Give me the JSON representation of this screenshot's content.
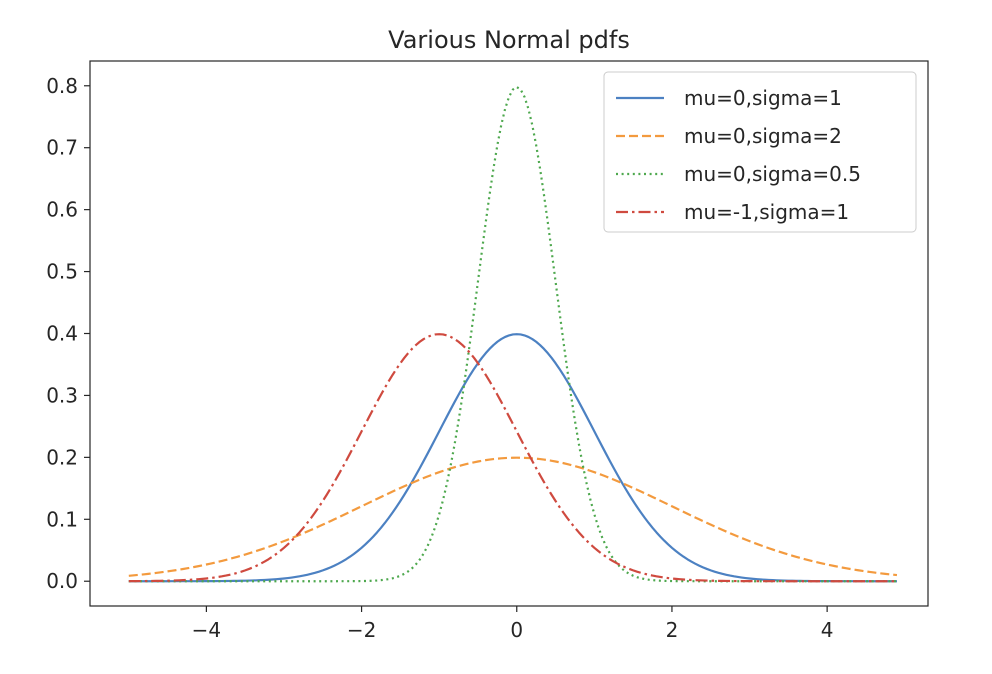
{
  "chart_data": {
    "type": "line",
    "title": "Various Normal pdfs",
    "xlabel": "",
    "ylabel": "",
    "xlim": [
      -5.5,
      5.3
    ],
    "ylim": [
      -0.04,
      0.84
    ],
    "grid": false,
    "legend_position": "top-right",
    "x_range": [
      -5,
      4.9
    ],
    "x_step": 0.05,
    "xticks": [
      {
        "value": -4,
        "label": "−4"
      },
      {
        "value": -2,
        "label": "−2"
      },
      {
        "value": 0,
        "label": "0"
      },
      {
        "value": 2,
        "label": "2"
      },
      {
        "value": 4,
        "label": "4"
      }
    ],
    "yticks": [
      {
        "value": 0.0,
        "label": "0.0"
      },
      {
        "value": 0.1,
        "label": "0.1"
      },
      {
        "value": 0.2,
        "label": "0.2"
      },
      {
        "value": 0.3,
        "label": "0.3"
      },
      {
        "value": 0.4,
        "label": "0.4"
      },
      {
        "value": 0.5,
        "label": "0.5"
      },
      {
        "value": 0.6,
        "label": "0.6"
      },
      {
        "value": 0.7,
        "label": "0.7"
      },
      {
        "value": 0.8,
        "label": "0.8"
      }
    ],
    "series": [
      {
        "name": "mu=0,sigma=1",
        "mu": 0,
        "sigma": 1,
        "color": "#4c81c2",
        "style": "solid"
      },
      {
        "name": "mu=0,sigma=2",
        "mu": 0,
        "sigma": 2,
        "color": "#f39a3e",
        "style": "dashed"
      },
      {
        "name": "mu=0,sigma=0.5",
        "mu": 0,
        "sigma": 0.5,
        "color": "#4ea84e",
        "style": "dotted"
      },
      {
        "name": "mu=-1,sigma=1",
        "mu": -1,
        "sigma": 1,
        "color": "#cf4a3f",
        "style": "dashdot"
      }
    ]
  }
}
